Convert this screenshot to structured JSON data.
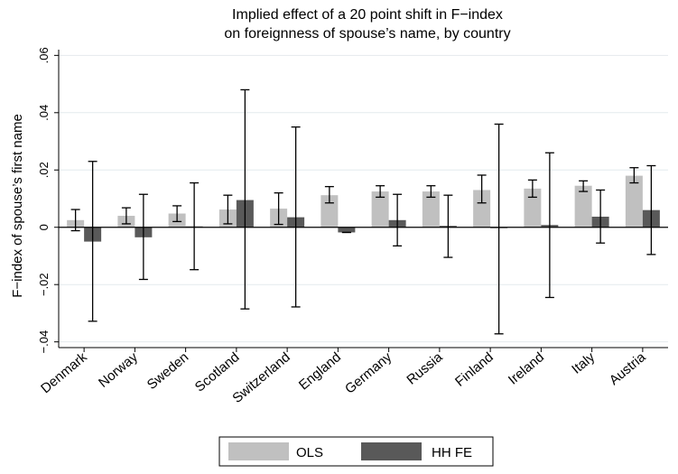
{
  "chart_data": {
    "type": "bar",
    "title": "Implied effect of a 20 point shift in F−index",
    "subtitle": "on foreignness of spouse’s name, by country",
    "xlabel": "",
    "ylabel": "F−index of spouse’s first name",
    "ylim": [
      -0.042,
      0.062
    ],
    "yticks": [
      -0.04,
      -0.02,
      0,
      0.02,
      0.04,
      0.06
    ],
    "ytick_labels": [
      "−.04",
      "−.02",
      "0",
      ".02",
      ".04",
      ".06"
    ],
    "grid": true,
    "legend_position": "bottom",
    "categories": [
      "Denmark",
      "Norway",
      "Sweden",
      "Scotland",
      "Switzerland",
      "England",
      "Germany",
      "Russia",
      "Finland",
      "Ireland",
      "Italy",
      "Austria"
    ],
    "series": [
      {
        "name": "OLS",
        "color": "#c0c0c0",
        "values": [
          0.0025,
          0.004,
          0.0048,
          0.0062,
          0.0065,
          0.0112,
          0.0125,
          0.0125,
          0.013,
          0.0135,
          0.0145,
          0.018
        ],
        "ci_low": [
          -0.0012,
          0.0012,
          0.002,
          0.0012,
          0.001,
          0.0085,
          0.0105,
          0.0105,
          0.0085,
          0.0105,
          0.0125,
          0.0155
        ],
        "ci_high": [
          0.0062,
          0.0068,
          0.0075,
          0.0112,
          0.012,
          0.0142,
          0.0145,
          0.0145,
          0.0182,
          0.0165,
          0.0162,
          0.0208
        ]
      },
      {
        "name": "HH FE",
        "color": "#595959",
        "values": [
          -0.005,
          -0.0035,
          0.0003,
          0.0095,
          0.0035,
          -0.0018,
          0.0025,
          0.0005,
          -0.0003,
          0.0008,
          0.0037,
          0.006
        ],
        "ci_low": [
          -0.0328,
          -0.0182,
          -0.0148,
          -0.0285,
          -0.0278,
          -0.0018,
          -0.0065,
          -0.0105,
          -0.0372,
          -0.0245,
          -0.0055,
          -0.0095
        ],
        "ci_high": [
          0.023,
          0.0115,
          0.0155,
          0.048,
          0.035,
          -0.0018,
          0.0115,
          0.0112,
          0.036,
          0.026,
          0.013,
          0.0215
        ]
      }
    ]
  }
}
